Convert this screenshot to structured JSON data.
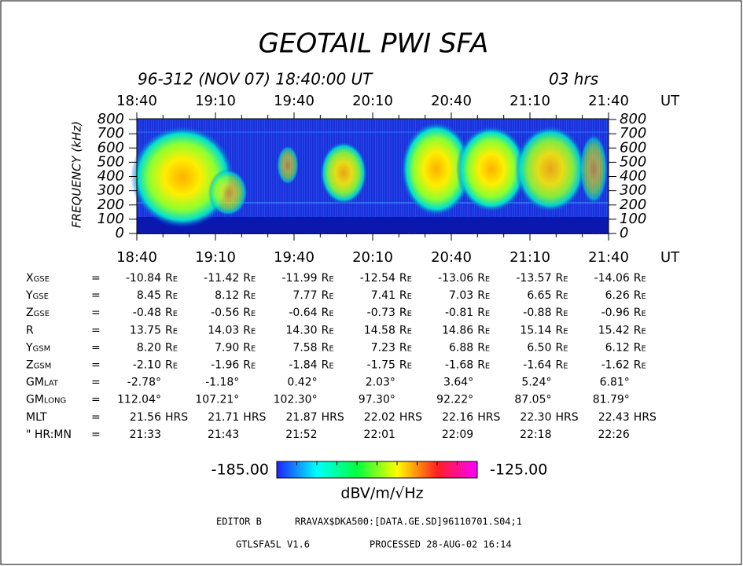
{
  "chart_data": {
    "type": "spectrogram",
    "title": "GEOTAIL  PWI  SFA",
    "subtitle": "96-312 (NOV 07) 18:40:00 UT",
    "duration": "03 hrs",
    "x_unit": "UT",
    "categories": [
      "18:40",
      "19:10",
      "19:40",
      "20:10",
      "20:40",
      "21:10",
      "21:40"
    ],
    "ylabel": "FREQUENCY (kHz)",
    "ylim": [
      0,
      800
    ],
    "yticks": [
      0,
      100,
      200,
      300,
      400,
      500,
      600,
      700,
      800
    ],
    "colorbar": {
      "min": {
        "value": -185,
        "label": "-185.00"
      },
      "max": {
        "value": -125,
        "label": "-125.00"
      },
      "unit": "dBV/m/√Hz"
    }
  },
  "ephemeris": {
    "equals": "=",
    "rows": [
      {
        "label": "Xgse",
        "unit": "Re",
        "values": [
          "-10.84",
          "-11.42",
          "-11.99",
          "-12.54",
          "-13.06",
          "-13.57",
          "-14.06"
        ]
      },
      {
        "label": "Ygse",
        "unit": "Re",
        "values": [
          "8.45",
          "8.12",
          "7.77",
          "7.41",
          "7.03",
          "6.65",
          "6.26"
        ]
      },
      {
        "label": "Zgse",
        "unit": "Re",
        "values": [
          "-0.48",
          "-0.56",
          "-0.64",
          "-0.73",
          "-0.81",
          "-0.88",
          "-0.96"
        ]
      },
      {
        "label": "R",
        "unit": "Re",
        "values": [
          "13.75",
          "14.03",
          "14.30",
          "14.58",
          "14.86",
          "15.14",
          "15.42"
        ]
      },
      {
        "label": "Ygsm",
        "unit": "Re",
        "values": [
          "8.20",
          "7.90",
          "7.58",
          "7.23",
          "6.88",
          "6.50",
          "6.12"
        ]
      },
      {
        "label": "Zgsm",
        "unit": "Re",
        "values": [
          "-2.10",
          "-1.96",
          "-1.84",
          "-1.75",
          "-1.68",
          "-1.64",
          "-1.62"
        ]
      },
      {
        "label": "GMlat",
        "values": [
          "-2.78°",
          "-1.18°",
          "0.42°",
          "2.03°",
          "3.64°",
          "5.24°",
          "6.81°"
        ]
      },
      {
        "label": "GMlong",
        "values": [
          "112.04°",
          "107.21°",
          "102.30°",
          "97.30°",
          "92.22°",
          "87.05°",
          "81.79°"
        ]
      },
      {
        "label": "MLT",
        "unit": "HRS",
        "values": [
          "21.56",
          "21.71",
          "21.87",
          "22.02",
          "22.16",
          "22.30",
          "22.43"
        ]
      },
      {
        "label": "\" HR:MN",
        "values": [
          "21:33",
          "21:43",
          "21:52",
          "22:01",
          "22:09",
          "22:18",
          "22:26"
        ]
      }
    ]
  },
  "footer": {
    "editor": "EDITOR B",
    "file": "RRAVAX$DKA500:[DATA.GE.SD]96110701.S04;1",
    "version": "GTLSFA5L V1.6",
    "processed": "PROCESSED 28-AUG-02  16:14"
  }
}
